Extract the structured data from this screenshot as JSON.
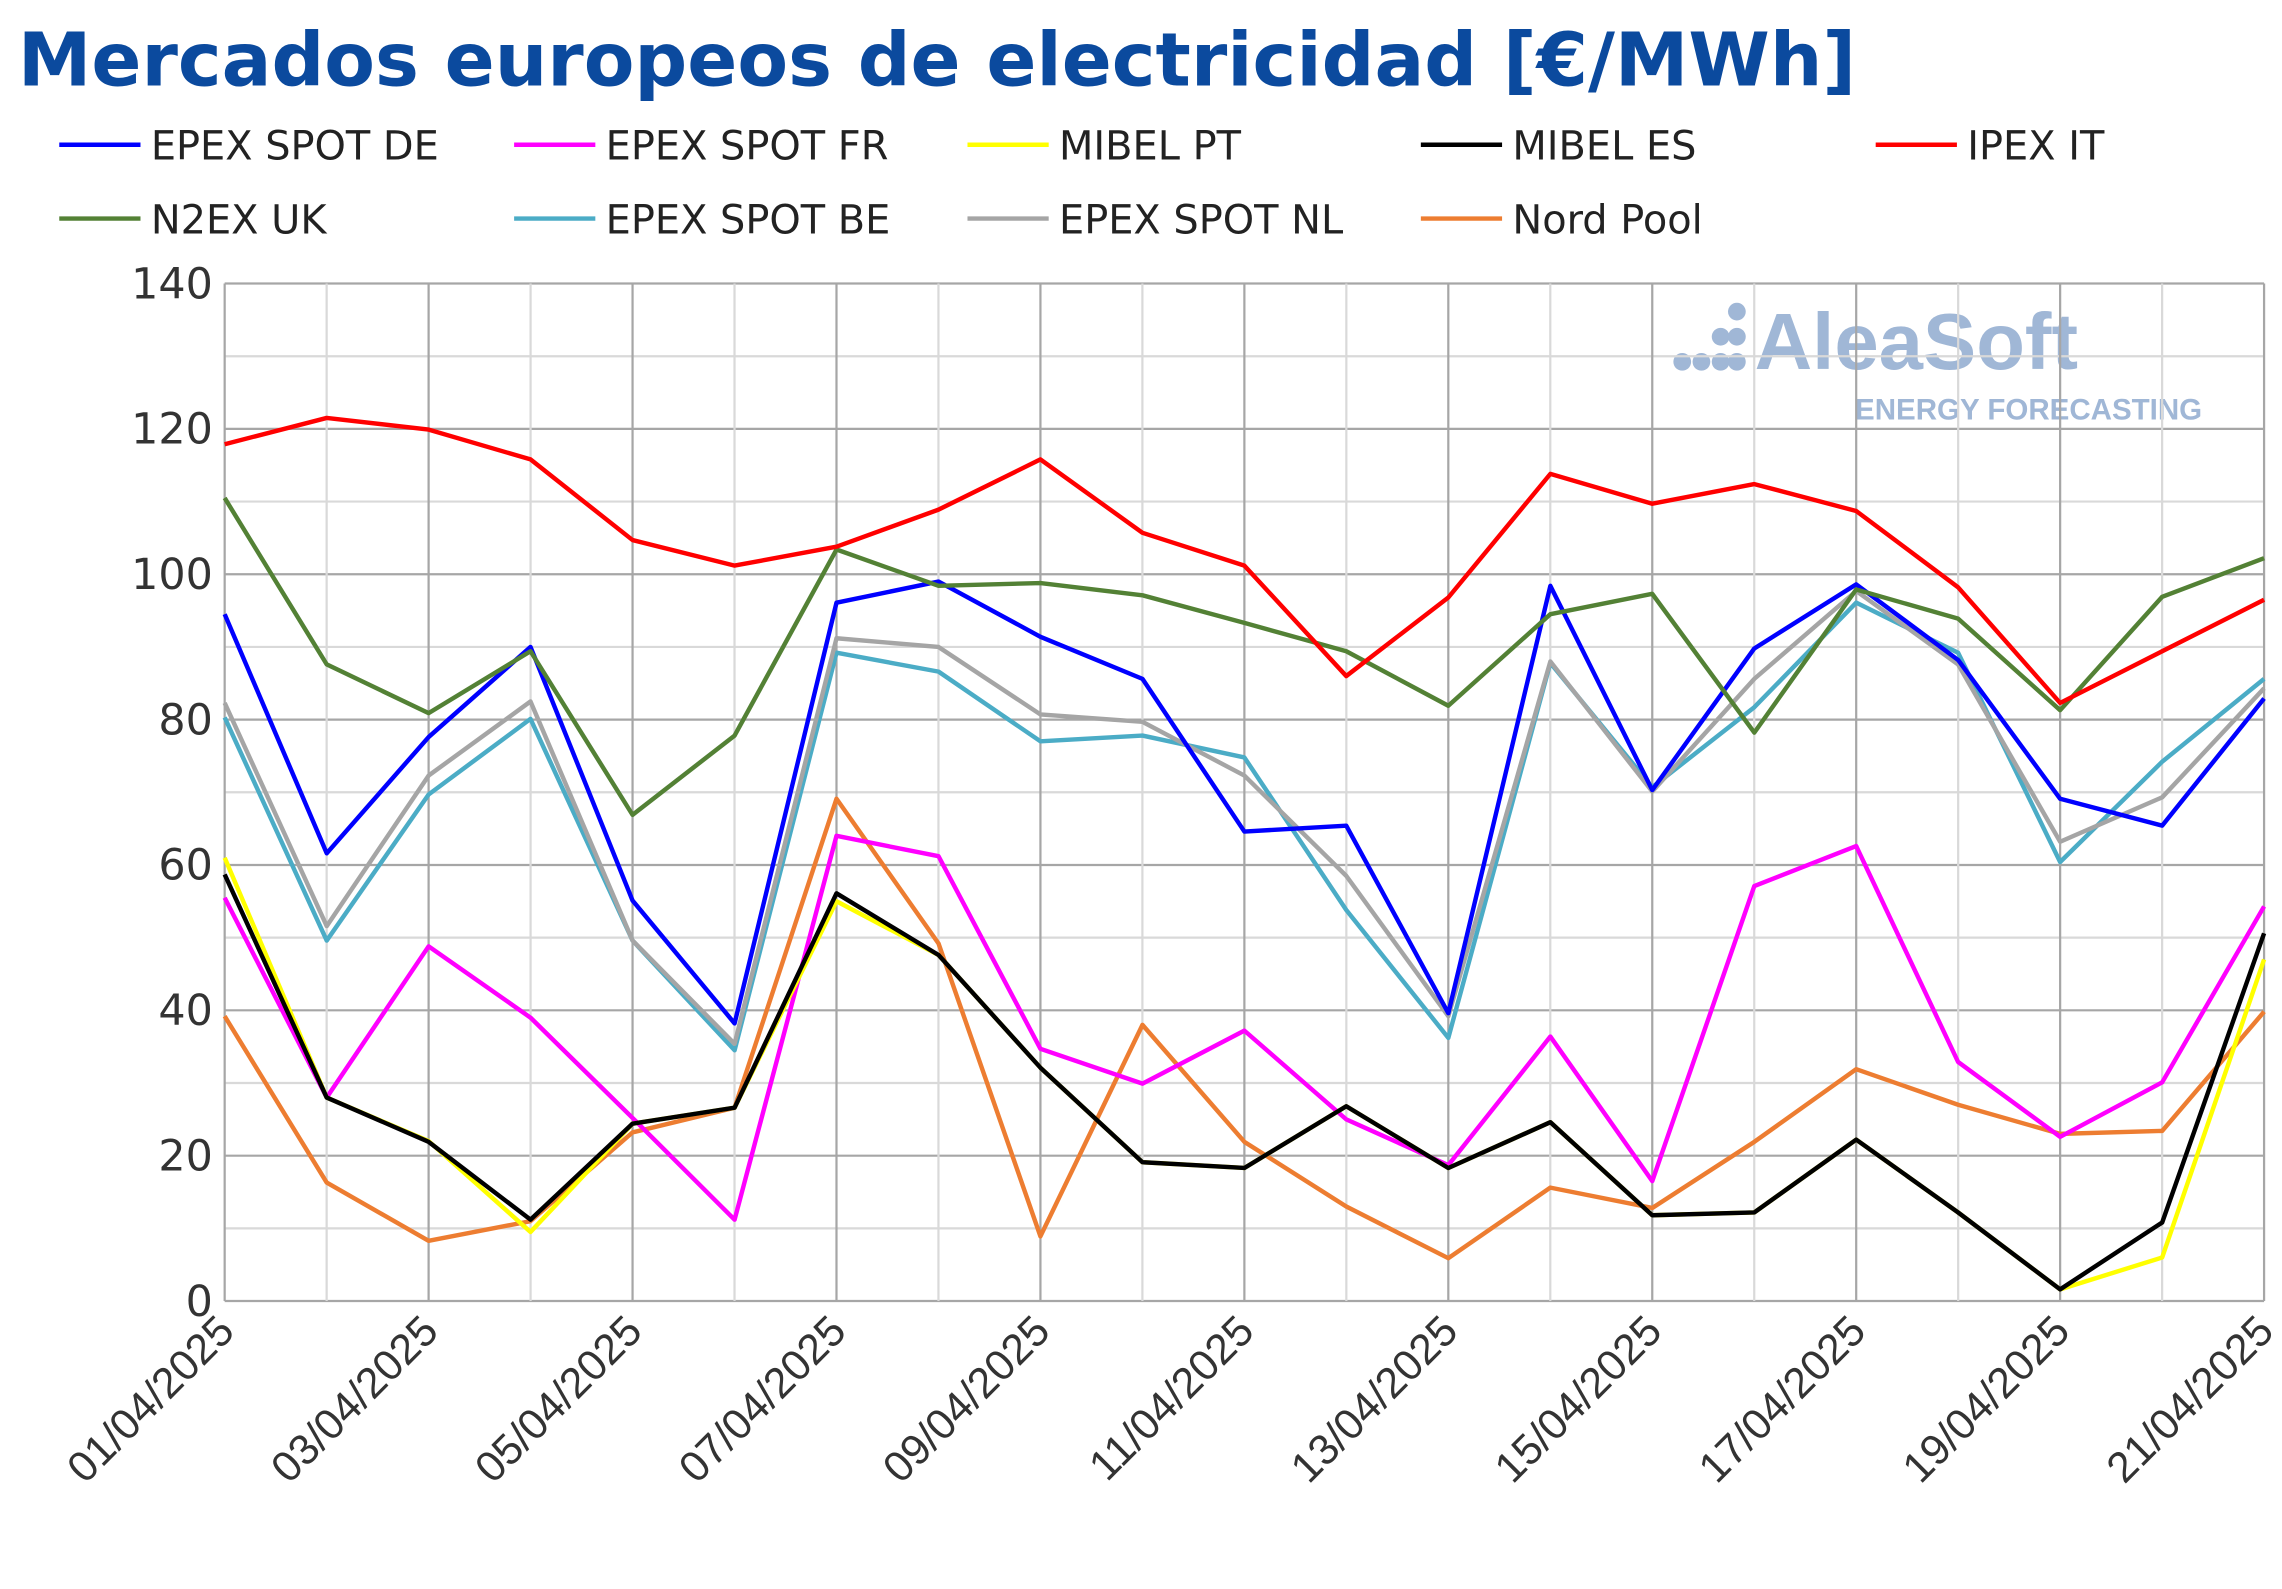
{
  "chart_data": {
    "type": "line",
    "title": "Mercados europeos de electricidad [€/MWh]",
    "xlabel": "",
    "ylabel": "",
    "ylim": [
      0,
      140
    ],
    "yticks": [
      0,
      20,
      40,
      60,
      80,
      100,
      120,
      140
    ],
    "grid": true,
    "legend_position": "top",
    "categories": [
      "01/04/2025",
      "02/04/2025",
      "03/04/2025",
      "04/04/2025",
      "05/04/2025",
      "06/04/2025",
      "07/04/2025",
      "08/04/2025",
      "09/04/2025",
      "10/04/2025",
      "11/04/2025",
      "12/04/2025",
      "13/04/2025",
      "14/04/2025",
      "15/04/2025",
      "16/04/2025",
      "17/04/2025",
      "18/04/2025",
      "19/04/2025",
      "20/04/2025",
      "21/04/2025"
    ],
    "tick_labels": [
      "01/04/2025",
      "03/04/2025",
      "05/04/2025",
      "07/04/2025",
      "09/04/2025",
      "11/04/2025",
      "13/04/2025",
      "15/04/2025",
      "17/04/2025",
      "19/04/2025",
      "21/04/2025"
    ],
    "series": [
      {
        "name": "EPEX SPOT DE",
        "color": "#0000ff",
        "values": [
          94.5,
          61.6,
          77.6,
          90.0,
          55.1,
          38.2,
          96.1,
          99.0,
          91.4,
          85.6,
          64.6,
          65.4,
          39.6,
          98.4,
          70.3,
          89.8,
          98.6,
          88.2,
          69.1,
          65.4,
          82.9
        ]
      },
      {
        "name": "EPEX SPOT FR",
        "color": "#ff00ff",
        "values": [
          55.5,
          28.0,
          48.8,
          39.0,
          25.2,
          11.2,
          64.0,
          61.2,
          34.7,
          29.9,
          37.2,
          25.0,
          18.7,
          36.4,
          16.5,
          57.1,
          62.6,
          32.9,
          22.6,
          30.1,
          54.3
        ]
      },
      {
        "name": "MIBEL PT",
        "color": "#ffff00",
        "values": [
          61.0,
          28.0,
          22.0,
          9.5,
          24.4,
          26.6,
          55.0,
          47.6,
          32.1,
          19.1,
          18.3,
          26.8,
          18.3,
          24.6,
          11.8,
          12.2,
          22.2,
          12.2,
          1.6,
          6.0,
          47.0
        ]
      },
      {
        "name": "MIBEL ES",
        "color": "#000000",
        "values": [
          58.7,
          28.0,
          21.9,
          11.2,
          24.4,
          26.6,
          56.1,
          47.6,
          32.1,
          19.1,
          18.3,
          26.8,
          18.3,
          24.6,
          11.8,
          12.2,
          22.2,
          12.2,
          1.6,
          10.8,
          50.6
        ]
      },
      {
        "name": "IPEX IT",
        "color": "#ff0000",
        "values": [
          117.9,
          121.5,
          119.9,
          115.8,
          104.7,
          101.2,
          103.8,
          108.9,
          115.8,
          105.7,
          101.2,
          86.0,
          96.8,
          113.8,
          109.7,
          112.4,
          108.7,
          98.2,
          82.3,
          89.4,
          96.5
        ]
      },
      {
        "name": "N2EX UK",
        "color": "#538135",
        "values": [
          110.5,
          87.6,
          80.9,
          89.4,
          66.9,
          77.8,
          103.4,
          98.4,
          98.8,
          97.1,
          93.3,
          89.4,
          81.9,
          94.5,
          97.3,
          78.2,
          97.9,
          93.9,
          81.3,
          96.9,
          102.2
        ]
      },
      {
        "name": "EPEX SPOT BE",
        "color": "#4bacc6",
        "values": [
          80.3,
          49.6,
          69.7,
          80.1,
          49.6,
          34.5,
          89.2,
          86.6,
          77.0,
          77.8,
          74.8,
          53.8,
          36.2,
          87.8,
          70.7,
          81.7,
          96.1,
          89.2,
          60.4,
          74.2,
          85.6
        ]
      },
      {
        "name": "EPEX SPOT NL",
        "color": "#a5a5a5",
        "values": [
          82.3,
          51.6,
          72.3,
          82.5,
          49.6,
          35.4,
          91.2,
          90.0,
          80.7,
          79.7,
          72.3,
          58.5,
          39.2,
          88.0,
          70.1,
          85.6,
          97.7,
          87.6,
          63.2,
          69.3,
          84.3
        ]
      },
      {
        "name": "Nord Pool",
        "color": "#ed7d31",
        "values": [
          39.2,
          16.3,
          8.3,
          11.0,
          23.2,
          26.6,
          69.1,
          49.2,
          8.9,
          38.0,
          21.9,
          13.0,
          5.9,
          15.6,
          12.8,
          21.9,
          31.9,
          27.0,
          23.0,
          23.4,
          39.8
        ]
      }
    ]
  },
  "logo": {
    "name": "AleaSoft",
    "tagline": "ENERGY FORECASTING"
  }
}
